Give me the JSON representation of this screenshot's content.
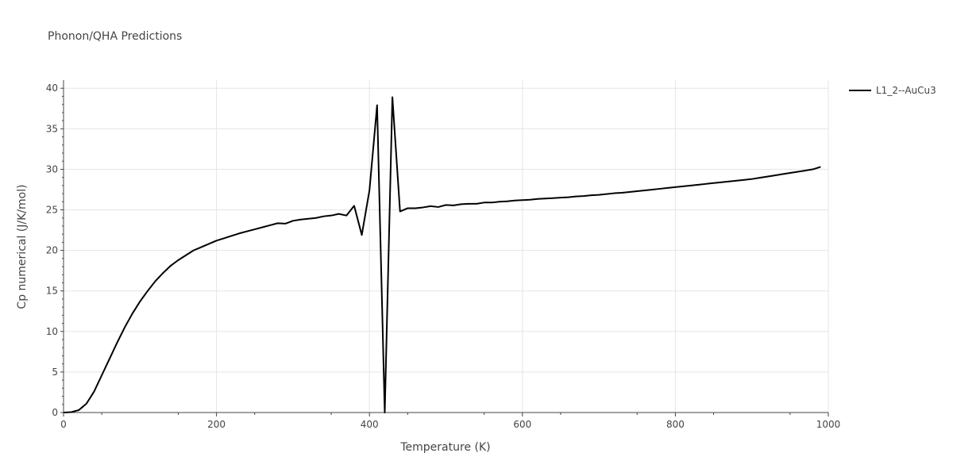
{
  "chart_data": {
    "type": "line",
    "title": "Phonon/QHA Predictions",
    "xlabel": "Temperature (K)",
    "ylabel": "Cp numerical (J/K/mol)",
    "xlim": [
      0,
      1000
    ],
    "ylim": [
      0,
      41
    ],
    "x_ticks": [
      0,
      200,
      400,
      600,
      800,
      1000
    ],
    "y_ticks": [
      0,
      5,
      10,
      15,
      20,
      25,
      30,
      35,
      40
    ],
    "grid": true,
    "legend_position": "top-right",
    "series": [
      {
        "name": "L1_2--AuCu3",
        "color": "#000000",
        "x": [
          0,
          10,
          20,
          30,
          40,
          50,
          60,
          70,
          80,
          90,
          100,
          110,
          120,
          130,
          140,
          150,
          160,
          170,
          180,
          190,
          200,
          210,
          220,
          230,
          240,
          250,
          260,
          270,
          280,
          290,
          300,
          310,
          320,
          330,
          340,
          350,
          360,
          370,
          380,
          390,
          400,
          410,
          420,
          430,
          440,
          450,
          460,
          470,
          480,
          490,
          500,
          510,
          520,
          530,
          540,
          550,
          560,
          570,
          580,
          590,
          600,
          610,
          620,
          630,
          640,
          650,
          660,
          670,
          680,
          690,
          700,
          710,
          720,
          730,
          740,
          750,
          760,
          770,
          780,
          790,
          800,
          810,
          820,
          830,
          840,
          850,
          860,
          870,
          880,
          890,
          900,
          910,
          920,
          930,
          940,
          950,
          960,
          970,
          980,
          990
        ],
        "y": [
          0.0,
          0.05,
          0.3,
          1.1,
          2.6,
          4.6,
          6.6,
          8.6,
          10.5,
          12.2,
          13.7,
          15.0,
          16.2,
          17.2,
          18.1,
          18.8,
          19.4,
          20.0,
          20.4,
          20.8,
          21.2,
          21.5,
          21.8,
          22.1,
          22.35,
          22.6,
          22.85,
          23.1,
          23.35,
          23.3,
          23.65,
          23.8,
          23.9,
          24.0,
          24.2,
          24.3,
          24.5,
          24.3,
          25.5,
          21.9,
          27.4,
          37.9,
          0.0,
          38.9,
          24.8,
          25.2,
          25.2,
          25.3,
          25.45,
          25.35,
          25.6,
          25.55,
          25.7,
          25.75,
          25.75,
          25.9,
          25.9,
          26.0,
          26.05,
          26.15,
          26.2,
          26.25,
          26.35,
          26.4,
          26.45,
          26.5,
          26.55,
          26.65,
          26.7,
          26.8,
          26.85,
          26.95,
          27.05,
          27.1,
          27.2,
          27.3,
          27.4,
          27.5,
          27.6,
          27.7,
          27.8,
          27.9,
          28.0,
          28.1,
          28.2,
          28.3,
          28.4,
          28.5,
          28.6,
          28.7,
          28.8,
          28.95,
          29.1,
          29.25,
          29.4,
          29.55,
          29.7,
          29.85,
          30.0,
          30.3
        ]
      }
    ]
  }
}
